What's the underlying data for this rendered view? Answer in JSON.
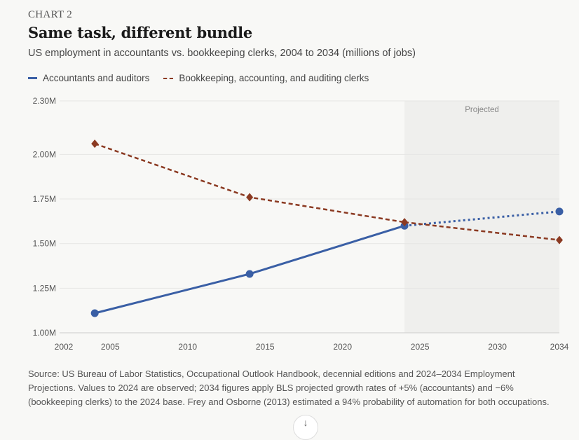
{
  "chart_data": {
    "type": "line",
    "kicker": "CHART 2",
    "title": "Same task, different bundle",
    "subtitle": "US employment in accountants vs. bookkeeping clerks, 2004 to 2034 (millions of jobs)",
    "xlabel": "",
    "ylabel": "",
    "xlim": [
      2002,
      2034
    ],
    "ylim": [
      1.0,
      2.3
    ],
    "x_ticks": [
      2002,
      2005,
      2010,
      2015,
      2020,
      2025,
      2030,
      2034
    ],
    "y_ticks": [
      1.0,
      1.25,
      1.5,
      1.75,
      2.0,
      2.3
    ],
    "y_tick_labels": [
      "1.00M",
      "1.25M",
      "1.50M",
      "1.75M",
      "2.00M",
      "2.30M"
    ],
    "grid": true,
    "legend_position": "top-left",
    "projected_region": {
      "label": "Projected",
      "from": 2024,
      "to": 2034
    },
    "series": [
      {
        "name": "Accountants and auditors",
        "color": "#3a5fa5",
        "marker": "circle",
        "style": "solid",
        "projected_style": "dotted",
        "x": [
          2004,
          2014,
          2024,
          2034
        ],
        "values": [
          1.11,
          1.33,
          1.6,
          1.68
        ]
      },
      {
        "name": "Bookkeeping, accounting, and auditing clerks",
        "color": "#8b3a22",
        "marker": "diamond",
        "style": "dashed",
        "projected_style": "dashed",
        "x": [
          2004,
          2014,
          2024,
          2034
        ],
        "values": [
          2.06,
          1.76,
          1.62,
          1.52
        ]
      }
    ]
  },
  "source": "Source: US Bureau of Labor Statistics, Occupational Outlook Handbook, decennial editions and 2024–2034 Employment Projections. Values to 2024 are observed; 2034 figures apply BLS projected growth rates of +5% (accountants) and −6% (bookkeeping clerks) to the 2024 base. Frey and Osborne (2013) estimated a 94% probability of automation for both occupations.",
  "scroll_button": "↓"
}
